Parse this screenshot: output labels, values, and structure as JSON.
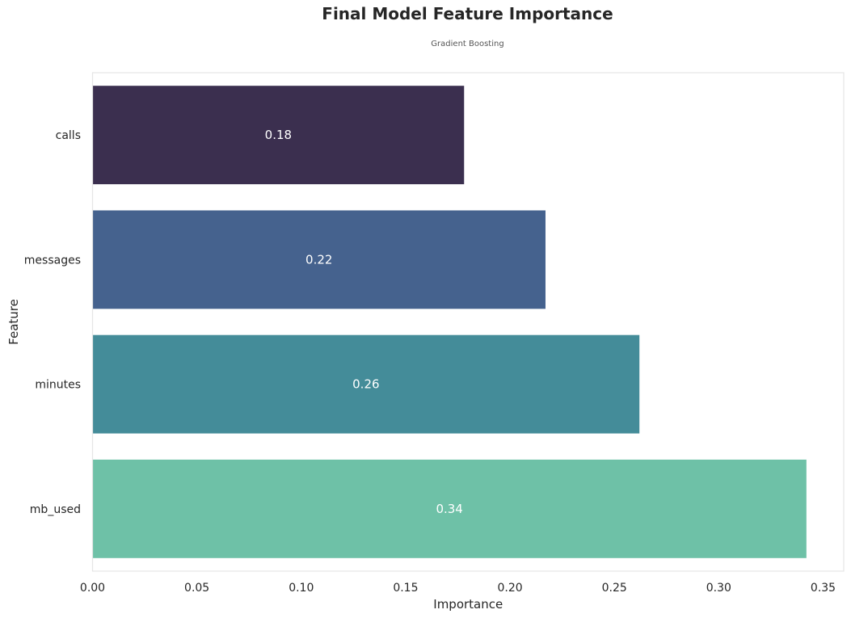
{
  "chart_data": {
    "type": "bar",
    "orientation": "horizontal",
    "title": "Final Model Feature Importance",
    "subtitle": "Gradient Boosting",
    "xlabel": "Importance",
    "ylabel": "Feature",
    "categories": [
      "calls",
      "messages",
      "minutes",
      "mb_used"
    ],
    "values": [
      0.178,
      0.217,
      0.262,
      0.342
    ],
    "value_labels": [
      "0.18",
      "0.22",
      "0.26",
      "0.34"
    ],
    "xlim": [
      0,
      0.36
    ],
    "xticks": [
      0.0,
      0.05,
      0.1,
      0.15,
      0.2,
      0.25,
      0.3,
      0.35
    ],
    "xtick_labels": [
      "0.00",
      "0.05",
      "0.10",
      "0.15",
      "0.20",
      "0.25",
      "0.30",
      "0.35"
    ],
    "grid": false,
    "bar_colors": [
      "#3b2f4f",
      "#45628e",
      "#448c99",
      "#6ec1a7"
    ]
  }
}
